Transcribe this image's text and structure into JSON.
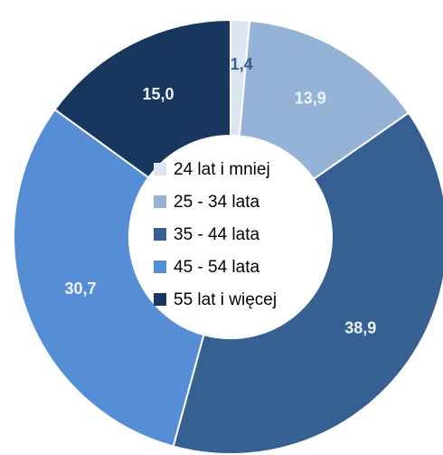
{
  "chart_data": {
    "type": "donut",
    "categories": [
      "24 lat i mniej",
      "25 - 34 lata",
      "35 - 44 lata",
      "45 - 54 lata",
      "55 lat i więcej"
    ],
    "values": [
      1.4,
      13.9,
      38.9,
      30.7,
      15.0
    ],
    "value_labels": [
      "1,4",
      "13,9",
      "38,9",
      "30,7",
      "15,0"
    ],
    "colors": [
      "#dce6f2",
      "#95b3d7",
      "#366092",
      "#558ed5",
      "#17375e"
    ],
    "legend": "center"
  }
}
